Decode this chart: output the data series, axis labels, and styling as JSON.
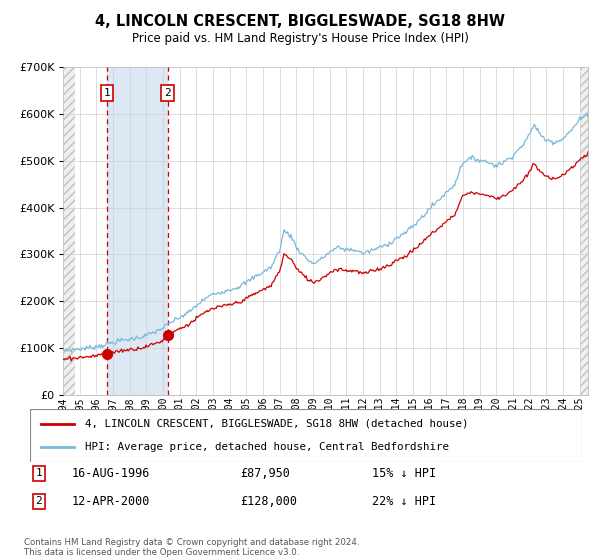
{
  "title": "4, LINCOLN CRESCENT, BIGGLESWADE, SG18 8HW",
  "subtitle": "Price paid vs. HM Land Registry's House Price Index (HPI)",
  "legend_line1": "4, LINCOLN CRESCENT, BIGGLESWADE, SG18 8HW (detached house)",
  "legend_line2": "HPI: Average price, detached house, Central Bedfordshire",
  "transaction1_date": "16-AUG-1996",
  "transaction1_price": 87950,
  "transaction1_label": "1",
  "transaction1_pct": "15% ↓ HPI",
  "transaction2_date": "12-APR-2000",
  "transaction2_price": 128000,
  "transaction2_label": "2",
  "transaction2_pct": "22% ↓ HPI",
  "footnote": "Contains HM Land Registry data © Crown copyright and database right 2024.\nThis data is licensed under the Open Government Licence v3.0.",
  "hpi_line_color": "#7ab8d9",
  "price_line_color": "#cc0000",
  "marker_color": "#cc0000",
  "transaction_vline_color": "#cc0000",
  "shading_color": "#dce9f5",
  "ylim": [
    0,
    700000
  ],
  "xlim_start": 1994.0,
  "xlim_end": 2025.5,
  "transaction1_x": 1996.62,
  "transaction2_x": 2000.27,
  "hpi_keypoints": [
    [
      1994.0,
      95000
    ],
    [
      1994.5,
      96000
    ],
    [
      1995.0,
      98000
    ],
    [
      1995.5,
      100000
    ],
    [
      1996.0,
      103000
    ],
    [
      1996.5,
      107000
    ],
    [
      1997.0,
      112000
    ],
    [
      1997.5,
      116000
    ],
    [
      1998.0,
      119000
    ],
    [
      1998.5,
      122000
    ],
    [
      1999.0,
      127000
    ],
    [
      1999.5,
      134000
    ],
    [
      2000.0,
      143000
    ],
    [
      2000.5,
      155000
    ],
    [
      2001.0,
      165000
    ],
    [
      2001.5,
      175000
    ],
    [
      2002.0,
      190000
    ],
    [
      2002.5,
      205000
    ],
    [
      2003.0,
      215000
    ],
    [
      2003.5,
      220000
    ],
    [
      2004.0,
      225000
    ],
    [
      2004.5,
      230000
    ],
    [
      2005.0,
      240000
    ],
    [
      2005.5,
      252000
    ],
    [
      2006.0,
      262000
    ],
    [
      2006.5,
      273000
    ],
    [
      2007.0,
      310000
    ],
    [
      2007.25,
      350000
    ],
    [
      2007.5,
      345000
    ],
    [
      2007.75,
      335000
    ],
    [
      2008.0,
      315000
    ],
    [
      2008.5,
      295000
    ],
    [
      2009.0,
      280000
    ],
    [
      2009.5,
      290000
    ],
    [
      2010.0,
      305000
    ],
    [
      2010.5,
      315000
    ],
    [
      2011.0,
      310000
    ],
    [
      2011.5,
      310000
    ],
    [
      2012.0,
      302000
    ],
    [
      2012.5,
      308000
    ],
    [
      2013.0,
      315000
    ],
    [
      2013.5,
      322000
    ],
    [
      2014.0,
      335000
    ],
    [
      2014.5,
      345000
    ],
    [
      2015.0,
      360000
    ],
    [
      2015.5,
      378000
    ],
    [
      2016.0,
      398000
    ],
    [
      2016.5,
      415000
    ],
    [
      2017.0,
      432000
    ],
    [
      2017.5,
      450000
    ],
    [
      2018.0,
      498000
    ],
    [
      2018.5,
      505000
    ],
    [
      2019.0,
      502000
    ],
    [
      2019.5,
      497000
    ],
    [
      2020.0,
      490000
    ],
    [
      2020.5,
      498000
    ],
    [
      2021.0,
      512000
    ],
    [
      2021.5,
      530000
    ],
    [
      2022.0,
      555000
    ],
    [
      2022.25,
      578000
    ],
    [
      2022.5,
      565000
    ],
    [
      2022.75,
      550000
    ],
    [
      2023.0,
      545000
    ],
    [
      2023.5,
      540000
    ],
    [
      2024.0,
      548000
    ],
    [
      2024.5,
      565000
    ],
    [
      2025.0,
      588000
    ],
    [
      2025.5,
      600000
    ]
  ]
}
